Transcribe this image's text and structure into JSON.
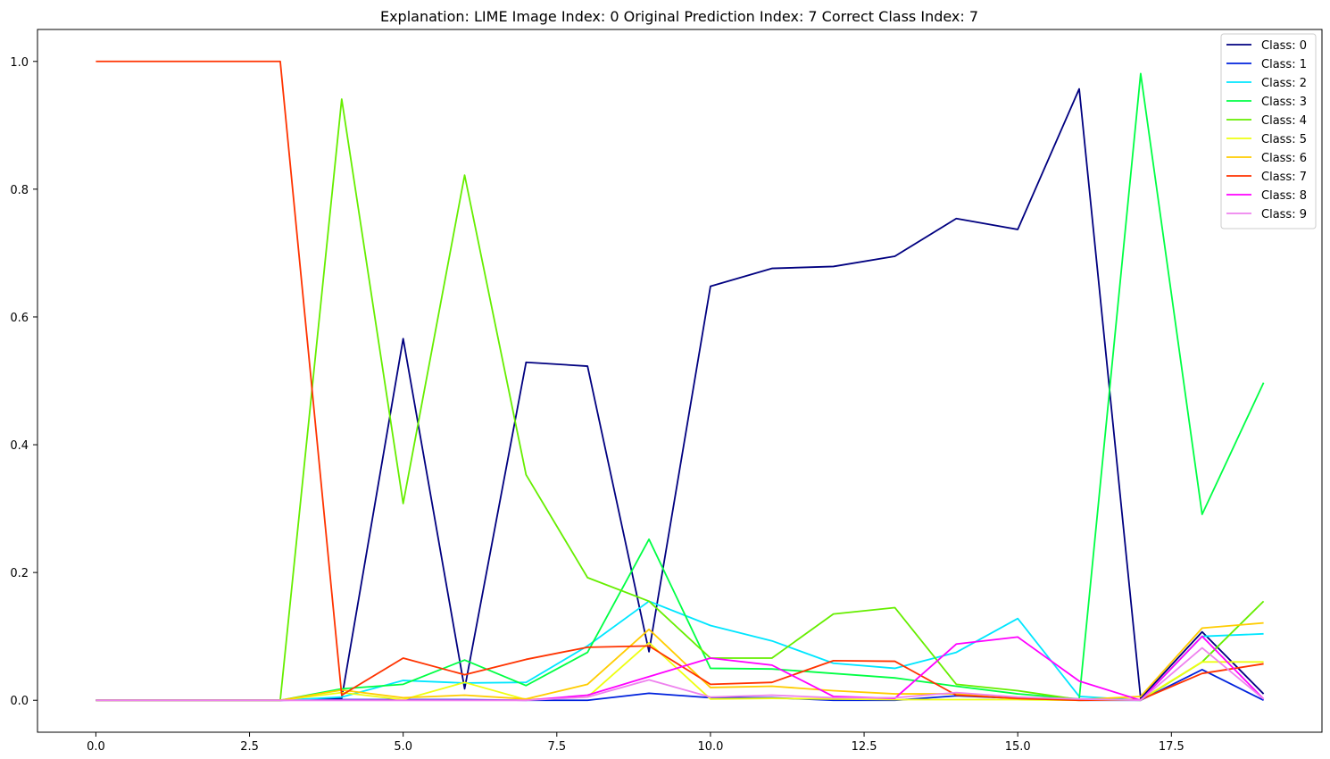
{
  "chart_data": {
    "type": "line",
    "title": "Explanation: LIME Image Index: 0 Original Prediction Index: 7 Correct Class Index: 7",
    "xlabel": "",
    "ylabel": "",
    "xlim": [
      -0.95,
      19.95
    ],
    "ylim": [
      -0.05,
      1.05
    ],
    "x": [
      0,
      1,
      2,
      3,
      4,
      5,
      6,
      7,
      8,
      9,
      10,
      11,
      12,
      13,
      14,
      15,
      16,
      17,
      18,
      19
    ],
    "xticks": [
      0.0,
      2.5,
      5.0,
      7.5,
      10.0,
      12.5,
      15.0,
      17.5
    ],
    "xtick_labels": [
      "0.0",
      "2.5",
      "5.0",
      "7.5",
      "10.0",
      "12.5",
      "15.0",
      "17.5"
    ],
    "yticks": [
      0.0,
      0.2,
      0.4,
      0.6,
      0.8,
      1.0
    ],
    "ytick_labels": [
      "0.0",
      "0.2",
      "0.4",
      "0.6",
      "0.8",
      "1.0"
    ],
    "grid": false,
    "legend_position": "top-right",
    "series": [
      {
        "name": "Class: 0",
        "color": "#000080",
        "values": [
          0,
          0,
          0,
          0,
          0.003,
          0.566,
          0.018,
          0.529,
          0.523,
          0.076,
          0.648,
          0.676,
          0.679,
          0.695,
          0.754,
          0.737,
          0.957,
          0.003,
          0.107,
          0.01
        ]
      },
      {
        "name": "Class: 1",
        "color": "#0022dd",
        "values": [
          0,
          0,
          0,
          0,
          0.001,
          0.001,
          0.001,
          0,
          0,
          0.011,
          0.004,
          0.004,
          0,
          0,
          0.007,
          0.003,
          0,
          0,
          0.048,
          0
        ]
      },
      {
        "name": "Class: 2",
        "color": "#00e6ff",
        "values": [
          0,
          0,
          0,
          0,
          0.005,
          0.031,
          0.027,
          0.028,
          0.085,
          0.155,
          0.117,
          0.093,
          0.058,
          0.05,
          0.075,
          0.128,
          0.006,
          0,
          0.1,
          0.104
        ]
      },
      {
        "name": "Class: 3",
        "color": "#00ff44",
        "values": [
          0,
          0,
          0,
          0,
          0.018,
          0.025,
          0.063,
          0.023,
          0.075,
          0.252,
          0.05,
          0.049,
          0.042,
          0.035,
          0.022,
          0.01,
          0.002,
          0.981,
          0.291,
          0.497
        ]
      },
      {
        "name": "Class: 4",
        "color": "#66ee00",
        "values": [
          0,
          0,
          0,
          0,
          0.941,
          0.308,
          0.822,
          0.353,
          0.192,
          0.155,
          0.066,
          0.066,
          0.135,
          0.145,
          0.025,
          0.015,
          0.001,
          0,
          0.06,
          0.155
        ]
      },
      {
        "name": "Class: 5",
        "color": "#eeff11",
        "values": [
          0,
          0,
          0,
          0,
          0.012,
          0.001,
          0.028,
          0.001,
          0.005,
          0.09,
          0.002,
          0.003,
          0.002,
          0.001,
          0.001,
          0.001,
          0,
          0.001,
          0.06,
          0.06
        ]
      },
      {
        "name": "Class: 6",
        "color": "#ffcc00",
        "values": [
          0,
          0,
          0,
          0,
          0.016,
          0.004,
          0.008,
          0.002,
          0.025,
          0.111,
          0.02,
          0.022,
          0.015,
          0.01,
          0.01,
          0.002,
          0.001,
          0.006,
          0.113,
          0.121
        ]
      },
      {
        "name": "Class: 7",
        "color": "#ff3300",
        "values": [
          1,
          1,
          1,
          1,
          0.008,
          0.066,
          0.04,
          0.064,
          0.083,
          0.085,
          0.025,
          0.028,
          0.062,
          0.061,
          0.008,
          0.003,
          0,
          0.001,
          0.042,
          0.057
        ]
      },
      {
        "name": "Class: 8",
        "color": "#ff00ff",
        "values": [
          0,
          0,
          0,
          0,
          0,
          0,
          0,
          0,
          0.008,
          0.037,
          0.066,
          0.055,
          0.006,
          0.003,
          0.088,
          0.099,
          0.03,
          0,
          0.1,
          0.002
        ]
      },
      {
        "name": "Class: 9",
        "color": "#ee82ee",
        "values": [
          0,
          0,
          0,
          0,
          0,
          0,
          0,
          0,
          0.005,
          0.032,
          0.005,
          0.008,
          0.004,
          0.004,
          0.012,
          0.005,
          0.002,
          0,
          0.082,
          0.002
        ]
      }
    ]
  }
}
